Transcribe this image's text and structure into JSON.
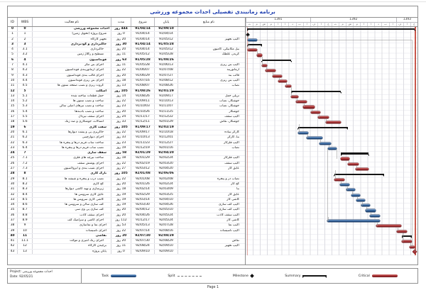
{
  "title": "برنامه زمانبندی تفصیلی احداث مجموعه ورزشی",
  "table": {
    "headers": {
      "id": "ID",
      "wbs": "WBS",
      "name": "نام فعالیت",
      "dur": "مدت",
      "start": "شروع",
      "finish": "پایان",
      "res": "نام منابع"
    }
  },
  "chart_data": {
    "type": "gantt",
    "title": "برنامه زمانبندی تفصیلی احداث مجموعه ورزشی",
    "date_range": {
      "start": "91/04/14",
      "finish": "92/09/10",
      "total_duration": "444 روز"
    },
    "timeline": {
      "years": [
        {
          "label": "1391",
          "months": 9
        },
        {
          "label": "1392",
          "months": 12
        },
        {
          "label": "1393",
          "months": 3
        }
      ],
      "months": [
        "ت",
        "م",
        "ش",
        "م",
        "آ",
        "آ",
        "د",
        "ب",
        "ا",
        "ف",
        "ا",
        "خ",
        "ت",
        "م",
        "ش",
        "م",
        "آ",
        "آ",
        "د",
        "ب",
        "ا",
        "ف",
        "ا",
        "خ"
      ]
    },
    "tasks": [
      {
        "id": "0",
        "wbs": "0",
        "name": "احداث مجموعه ورزشی",
        "lvl": 0,
        "bold": true,
        "dur": "444 روز",
        "start": "91/04/14",
        "finish": "92/09/10",
        "res": "",
        "bar": {
          "type": "summary",
          "s": 1,
          "e": 98.5
        }
      },
      {
        "id": "1",
        "wbs": "1",
        "name": "شروع پروژه (تحویل زمین)",
        "lvl": 1,
        "bold": false,
        "dur": "0 روز",
        "start": "91/04/14",
        "finish": "91/04/14",
        "res": "",
        "bar": {
          "type": "milestone",
          "s": 1.2
        }
      },
      {
        "id": "2",
        "wbs": "2",
        "name": "تجهیز کارگاه",
        "lvl": 1,
        "bold": false,
        "dur": "20 روز",
        "start": "91/04/14",
        "finish": "91/05/12",
        "res": "اکیپ تجهیز",
        "bar": {
          "type": "task",
          "s": 1.2,
          "e": 6.5
        }
      },
      {
        "id": "3",
        "wbs": "3",
        "name": "خاکبرداری و گودبرداری",
        "lvl": 1,
        "bold": true,
        "dur": "30 روز",
        "start": "91/04/14",
        "finish": "91/05/28",
        "res": "",
        "bar": {
          "type": "summary",
          "s": 1.2,
          "e": 9.5
        }
      },
      {
        "id": "4",
        "wbs": "3.1",
        "name": "خاکبرداری",
        "lvl": 2,
        "bold": false,
        "dur": "20 روز",
        "start": "91/04/14",
        "finish": "91/05/12",
        "res": "بیل مکانیکی، کامیون",
        "bar": {
          "type": "critical",
          "s": 1.2,
          "e": 6.5
        }
      },
      {
        "id": "5",
        "wbs": "3.2",
        "name": "تسطیح و رگلاژ زمین",
        "lvl": 2,
        "bold": false,
        "dur": "11 روز",
        "start": "91/05/12",
        "finish": "91/05/28",
        "res": "گریدر، غلطک",
        "bar": {
          "type": "critical",
          "s": 6.5,
          "e": 9.5
        }
      },
      {
        "id": "6",
        "wbs": "4",
        "name": "فونداسیون",
        "lvl": 1,
        "bold": true,
        "dur": "63 روز",
        "start": "91/05/28",
        "finish": "91/08/26",
        "res": "",
        "bar": {
          "type": "summary",
          "s": 9.5,
          "e": 26.5
        }
      },
      {
        "id": "7",
        "wbs": "4.1",
        "name": "اجرای بتن مگر",
        "lvl": 2,
        "bold": false,
        "dur": "11 روز",
        "start": "91/05/28",
        "finish": "91/06/13",
        "res": "اکیپ بتن ریزی",
        "bar": {
          "type": "critical",
          "s": 9.5,
          "e": 12.5
        }
      },
      {
        "id": "8",
        "wbs": "4.2",
        "name": "اجرای آرماتوربندی فونداسیون",
        "lvl": 2,
        "bold": false,
        "dur": "22 روز",
        "start": "91/06/07",
        "finish": "91/07/08",
        "res": "آرماتوربند",
        "bar": {
          "type": "critical",
          "s": 11.5,
          "e": 17.5
        }
      },
      {
        "id": "9",
        "wbs": "4.3",
        "name": "اجرای قالب بندی فونداسیون",
        "lvl": 2,
        "bold": false,
        "dur": "20 روز",
        "start": "91/06/29",
        "finish": "91/07/27",
        "res": "قالب بند",
        "bar": {
          "type": "critical",
          "s": 15.5,
          "e": 21
        }
      },
      {
        "id": "10",
        "wbs": "4.4",
        "name": "اجرای بتن ریزی فونداسیون",
        "lvl": 2,
        "bold": false,
        "dur": "18 روز",
        "start": "91/07/16",
        "finish": "91/08/12",
        "res": "اکیپ بتن ریزی",
        "bar": {
          "type": "critical",
          "s": 19,
          "e": 24
        }
      },
      {
        "id": "11",
        "wbs": "4.5",
        "name": "گروت ریزی و نصب صفحه ستون ها",
        "lvl": 2,
        "bold": false,
        "dur": "13 روز",
        "start": "91/08/07",
        "finish": "91/08/26",
        "res": "نصاب",
        "bar": {
          "type": "critical",
          "s": 23,
          "e": 26.5
        }
      },
      {
        "id": "12",
        "wbs": "5",
        "name": "اسکلت",
        "lvl": 1,
        "bold": true,
        "dur": "105 روز",
        "start": "91/08/26",
        "finish": "92/01/29",
        "res": "",
        "bar": {
          "type": "summary",
          "s": 26.5,
          "e": 55.5
        }
      },
      {
        "id": "13",
        "wbs": "5.1",
        "name": "حمل قطعات ساخته شده",
        "lvl": 2,
        "bold": false,
        "dur": "14 روز",
        "start": "91/08/26",
        "finish": "91/09/17",
        "res": "تریلی حمل",
        "bar": {
          "type": "critical",
          "s": 26.5,
          "e": 30.5
        }
      },
      {
        "id": "14",
        "wbs": "5.2",
        "name": "ساخت و نصب ستون ها",
        "lvl": 2,
        "bold": false,
        "dur": "22 روز",
        "start": "91/09/11",
        "finish": "91/10/13",
        "res": "جوشکار، نصاب",
        "bar": {
          "type": "critical",
          "s": 29.5,
          "e": 35.5
        }
      },
      {
        "id": "15",
        "wbs": "5.3",
        "name": "ساخت و نصب تیرهای اصلی سالن",
        "lvl": 2,
        "bold": false,
        "dur": "23 روز",
        "start": "91/10/03",
        "finish": "91/11/07",
        "res": "جوشکار، نصاب",
        "bar": {
          "type": "critical",
          "s": 33.5,
          "e": 40
        }
      },
      {
        "id": "16",
        "wbs": "5.4",
        "name": "ساخت و نصب بادبندها",
        "lvl": 2,
        "bold": false,
        "dur": "20 روز",
        "start": "91/10/26",
        "finish": "91/11/25",
        "res": "جوشکار",
        "bar": {
          "type": "critical",
          "s": 38,
          "e": 43.5
        }
      },
      {
        "id": "17",
        "wbs": "5.5",
        "name": "اجرای سقف تیردال",
        "lvl": 2,
        "bold": false,
        "dur": "24 روز",
        "start": "91/11/17",
        "finish": "91/12/22",
        "res": "اکیپ سقف",
        "bar": {
          "type": "critical",
          "s": 42,
          "e": 48.5
        }
      },
      {
        "id": "18",
        "wbs": "5.6",
        "name": "اتصالات، جوشکاری و ضد زنگ",
        "lvl": 2,
        "bold": false,
        "dur": "33 روز",
        "start": "91/12/11",
        "finish": "92/01/29",
        "res": "جوشکار، نقاش",
        "bar": {
          "type": "critical",
          "s": 46.5,
          "e": 55.5
        }
      },
      {
        "id": "19",
        "wbs": "6",
        "name": "سفت کاری",
        "lvl": 1,
        "bold": true,
        "dur": "105 روز",
        "start": "91/09/17",
        "finish": "92/02/19",
        "res": "",
        "bar": {
          "type": "summary",
          "s": 30.5,
          "e": 59.5
        }
      },
      {
        "id": "20",
        "wbs": "6.1",
        "name": "خاکریزی پی و پشت دیوارها",
        "lvl": 2,
        "bold": false,
        "dur": "22 روز",
        "start": "91/09/17",
        "finish": "91/10/18",
        "res": "کارگر ساده",
        "bar": {
          "type": "task",
          "s": 30.5,
          "e": 36.5
        }
      },
      {
        "id": "21",
        "wbs": "6.2",
        "name": "اجرای دیوارچینی",
        "lvl": 2,
        "bold": false,
        "dur": "33 روز",
        "start": "91/10/13",
        "finish": "91/12/01",
        "res": "بنا، کارگر",
        "bar": {
          "type": "task",
          "s": 35.5,
          "e": 44.5
        }
      },
      {
        "id": "22",
        "wbs": "6.3",
        "name": "ساخت ساب فریم درها و پنجره ها",
        "lvl": 2,
        "bold": false,
        "dur": "23 روز",
        "start": "91/11/23",
        "finish": "91/12/27",
        "res": "اکیپ فلزکار",
        "bar": {
          "type": "task",
          "s": 43,
          "e": 49.5
        }
      },
      {
        "id": "23",
        "wbs": "6.4",
        "name": "نصب ساب فریم درها و پنجره ها",
        "lvl": 2,
        "bold": false,
        "dur": "19 روز",
        "start": "91/12/19",
        "finish": "92/01/16",
        "res": "نصاب",
        "bar": {
          "type": "task",
          "s": 48,
          "e": 53
        }
      },
      {
        "id": "24",
        "wbs": "7",
        "name": "سقف سازی",
        "lvl": 1,
        "bold": true,
        "dur": "58 روز",
        "start": "92/01/29",
        "finish": "92/04/20",
        "res": "",
        "bar": {
          "type": "summary",
          "s": 55.5,
          "e": 71.5
        }
      },
      {
        "id": "25",
        "wbs": "7.1",
        "name": "ساخت تیرچه های فلزی",
        "lvl": 2,
        "bold": false,
        "dur": "18 روز",
        "start": "92/01/29",
        "finish": "92/02/24",
        "res": "اکیپ فلزکار",
        "bar": {
          "type": "critical",
          "s": 55.5,
          "e": 60.5
        }
      },
      {
        "id": "26",
        "wbs": "7.2",
        "name": "اجرای پوشش سقف",
        "lvl": 2,
        "bold": false,
        "dur": "22 روز",
        "start": "92/02/19",
        "finish": "92/03/20",
        "res": "اکیپ سقف",
        "bar": {
          "type": "critical",
          "s": 59.5,
          "e": 65.5
        }
      },
      {
        "id": "27",
        "wbs": "7.3",
        "name": "اجرای شیب بندی و ایزولاسیون",
        "lvl": 2,
        "bold": false,
        "dur": "27 روز",
        "start": "92/03/12",
        "finish": "92/04/20",
        "res": "عایق کار",
        "bar": {
          "type": "critical",
          "s": 64,
          "e": 71.5
        }
      },
      {
        "id": "28",
        "wbs": "8",
        "name": "نازک کاری",
        "lvl": 1,
        "bold": true,
        "dur": "105 روز",
        "start": "92/01/08",
        "finish": "92/06/06",
        "res": "",
        "bar": {
          "type": "summary",
          "s": 51.5,
          "e": 80.5
        }
      },
      {
        "id": "29",
        "wbs": "8.1",
        "name": "نصب درب و پنجره و شیشه ها",
        "lvl": 2,
        "bold": false,
        "dur": "22 روز",
        "start": "92/01/08",
        "finish": "92/02/08",
        "res": "نصاب در و پنجره",
        "bar": {
          "type": "critical",
          "s": 51.5,
          "e": 57.5
        }
      },
      {
        "id": "30",
        "wbs": "8.2",
        "name": "گچ کاری",
        "lvl": 2,
        "bold": false,
        "dur": "20 روز",
        "start": "92/01/26",
        "finish": "92/02/24",
        "res": "گچ کار",
        "bar": {
          "type": "task",
          "s": 55,
          "e": 60.5
        }
      },
      {
        "id": "31",
        "wbs": "8.3",
        "name": "زیرسازی و تهیه کاشی دیوارها",
        "lvl": 2,
        "bold": false,
        "dur": "18 روز",
        "start": "92/02/14",
        "finish": "92/03/09",
        "res": "بنا",
        "bar": {
          "type": "task",
          "s": 58.5,
          "e": 63.5
        }
      },
      {
        "id": "32",
        "wbs": "8.4",
        "name": "عایق کاری سرویس ها",
        "lvl": 2,
        "bold": false,
        "dur": "19 روز",
        "start": "92/02/29",
        "finish": "92/03/25",
        "res": "عایق کار",
        "bar": {
          "type": "task",
          "s": 61.5,
          "e": 66.5
        }
      },
      {
        "id": "33",
        "wbs": "8.5",
        "name": "کاشی کاری سرویس ها",
        "lvl": 2,
        "bold": false,
        "dur": "19 روز",
        "start": "92/03/14",
        "finish": "92/04/10",
        "res": "کاشی کار",
        "bar": {
          "type": "task",
          "s": 64.5,
          "e": 69.5
        }
      },
      {
        "id": "34",
        "wbs": "8.6",
        "name": "کف سازی سالن و سرویس ها",
        "lvl": 2,
        "bold": false,
        "dur": "19 روز",
        "start": "92/03/30",
        "finish": "92/04/26",
        "res": "اکیپ کف سازی",
        "bar": {
          "type": "task",
          "s": 67.5,
          "e": 72.5
        }
      },
      {
        "id": "35",
        "wbs": "8.7",
        "name": "کف سازی پی وی سی",
        "lvl": 2,
        "bold": false,
        "dur": "20 روز",
        "start": "92/04/12",
        "finish": "92/05/10",
        "res": "اکیپ کف سازی",
        "bar": {
          "type": "task",
          "s": 70,
          "e": 75.5
        }
      },
      {
        "id": "36",
        "wbs": "8.8",
        "name": "اجرای سقف کاذب",
        "lvl": 2,
        "bold": false,
        "dur": "20 روز",
        "start": "92/04/26",
        "finish": "92/05/24",
        "res": "اکیپ سقف کاذب",
        "bar": {
          "type": "task",
          "s": 72.5,
          "e": 78
        }
      },
      {
        "id": "37",
        "wbs": "8.9",
        "name": "اجرای کاشی و سرامیک کف",
        "lvl": 2,
        "bold": false,
        "dur": "112 روز",
        "start": "91/12/17",
        "finish": "92/05/24",
        "res": "کاشی کار",
        "bar": {
          "type": "task",
          "s": 47.5,
          "e": 78
        }
      },
      {
        "id": "38",
        "wbs": "9",
        "name": "اجرای نما و نماسازی",
        "lvl": 1,
        "bold": false,
        "dur": "53 روز",
        "start": "92/05/13",
        "finish": "92/07/28",
        "res": "اکیپ نما",
        "bar": {
          "type": "critical",
          "s": 76,
          "e": 90.5
        }
      },
      {
        "id": "39",
        "wbs": "10",
        "name": "اجرای تاسیسات",
        "lvl": 1,
        "bold": false,
        "dur": "22 روز",
        "start": "92/07/14",
        "finish": "92/08/16",
        "res": "اکیپ تاسیسات",
        "bar": {
          "type": "critical",
          "s": 88,
          "e": 94
        }
      },
      {
        "id": "40",
        "wbs": "11",
        "name": "نقاشی",
        "lvl": 1,
        "bold": true,
        "dur": "20 روز",
        "start": "92/07/30",
        "finish": "92/08/29",
        "res": "",
        "bar": {
          "type": "summary",
          "s": 91,
          "e": 96.5
        }
      },
      {
        "id": "41",
        "wbs": "11.1",
        "name": "اجرای رنگ آمیزی و موکت",
        "lvl": 2,
        "bold": false,
        "dur": "20 روز",
        "start": "92/07/30",
        "finish": "92/08/29",
        "res": "نقاش",
        "bar": {
          "type": "critical",
          "s": 91,
          "e": 96.5
        }
      },
      {
        "id": "42",
        "wbs": "12",
        "name": "برچیدن کارگاه",
        "lvl": 1,
        "bold": false,
        "dur": "11 روز",
        "start": "92/08/24",
        "finish": "92/09/10",
        "res": "اکیپ تجهیز",
        "bar": {
          "type": "critical",
          "s": 95.5,
          "e": 98.5
        }
      },
      {
        "id": "43",
        "wbs": "13",
        "name": "پایان پروژه",
        "lvl": 1,
        "bold": false,
        "dur": "0 روز",
        "start": "92/09/10",
        "finish": "92/09/10",
        "res": "",
        "bar": {
          "type": "milestone_end",
          "s": 98.3
        }
      }
    ],
    "extra_links": [
      {
        "dir": "h",
        "row": 2,
        "x1": 6.5,
        "x2": 96.5
      },
      {
        "dir": "v",
        "x": 96.5,
        "r1": 2,
        "r2": 42
      },
      {
        "dir": "v",
        "x": 47.5,
        "r1": 23,
        "r2": 37
      }
    ],
    "guides": {
      "start_line": 1,
      "finish_line": 98.5
    }
  },
  "legend": {
    "project_label": "Project: احداث مجموعه ورزشی",
    "date_label": "Date: 92/05/21",
    "items": [
      {
        "label": "Task",
        "type": "task"
      },
      {
        "label": "Split",
        "type": "split"
      },
      {
        "label": "Milestone",
        "type": "milestone"
      },
      {
        "label": "Summary",
        "type": "summary"
      },
      {
        "label": "Critical",
        "type": "critical"
      }
    ]
  },
  "footer": {
    "page": "Page 1"
  },
  "colors": {
    "title": "#1f3fb0",
    "critical": "#a83234",
    "task": "#31639c",
    "summary": "#161616",
    "border": "#8f8f8f",
    "grid": "#dcdce2",
    "link": "#9a9a9a",
    "redline": "#c0392b"
  }
}
